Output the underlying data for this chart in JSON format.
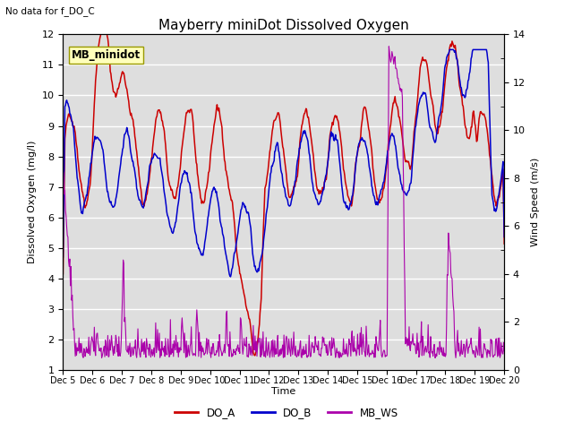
{
  "title": "Mayberry miniDot Dissolved Oxygen",
  "subtitle": "No data for f_DO_C",
  "ylabel_left": "Dissolved Oxygen (mg/l)",
  "ylabel_right": "Wind Speed (m/s)",
  "xlabel": "Time",
  "ylim_left": [
    1.0,
    12.0
  ],
  "ylim_right": [
    0,
    14
  ],
  "yticks_left": [
    1.0,
    2.0,
    3.0,
    4.0,
    5.0,
    6.0,
    7.0,
    8.0,
    9.0,
    10.0,
    11.0,
    12.0
  ],
  "yticks_right": [
    0,
    2,
    4,
    6,
    8,
    10,
    12,
    14
  ],
  "xtick_labels": [
    "Dec 5",
    "Dec 6",
    "Dec 7",
    "Dec 8",
    "Dec 9",
    "Dec 10",
    "Dec 11",
    "Dec 12",
    "Dec 13",
    "Dec 14",
    "Dec 15",
    "Dec 16",
    "Dec 17",
    "Dec 18",
    "Dec 19",
    "Dec 20"
  ],
  "color_DO_A": "#cc0000",
  "color_DO_B": "#0000cc",
  "color_MB_WS": "#aa00aa",
  "legend_label_A": "DO_A",
  "legend_label_B": "DO_B",
  "legend_label_WS": "MB_WS",
  "annotation_box": "MB_minidot",
  "annotation_box_color": "#ffffbb",
  "annotation_box_edge": "#999900",
  "bg_color": "#dedede",
  "grid_color": "#ffffff",
  "n_points": 720
}
